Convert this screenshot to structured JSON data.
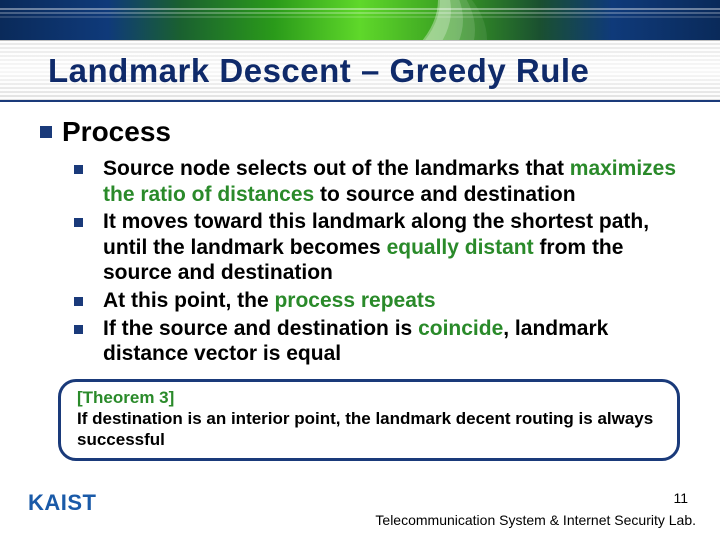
{
  "title": "Landmark Descent – Greedy Rule",
  "section": "Process",
  "bullets": [
    {
      "pre": "Source node selects out of the landmarks that ",
      "hl": "maximizes the ratio of distances",
      "post": " to source and destination"
    },
    {
      "pre": "It moves toward this landmark along the shortest path, until the landmark becomes ",
      "hl": "equally distant",
      "post": " from the source and destination"
    },
    {
      "pre": "At this point, the ",
      "hl": "process repeats",
      "post": ""
    },
    {
      "pre": "If the source and destination is ",
      "hl": "coincide",
      "post": ", landmark distance vector is equal"
    }
  ],
  "theorem": {
    "label": "[Theorem 3]",
    "text": "If destination is an interior point, the landmark decent routing is always successful"
  },
  "footer": {
    "logo": "KAIST",
    "page": "11",
    "lab": "Telecommunication System & Internet Security Lab."
  },
  "colors": {
    "accent": "#1a3a7a",
    "highlight": "#2a8a2a"
  }
}
